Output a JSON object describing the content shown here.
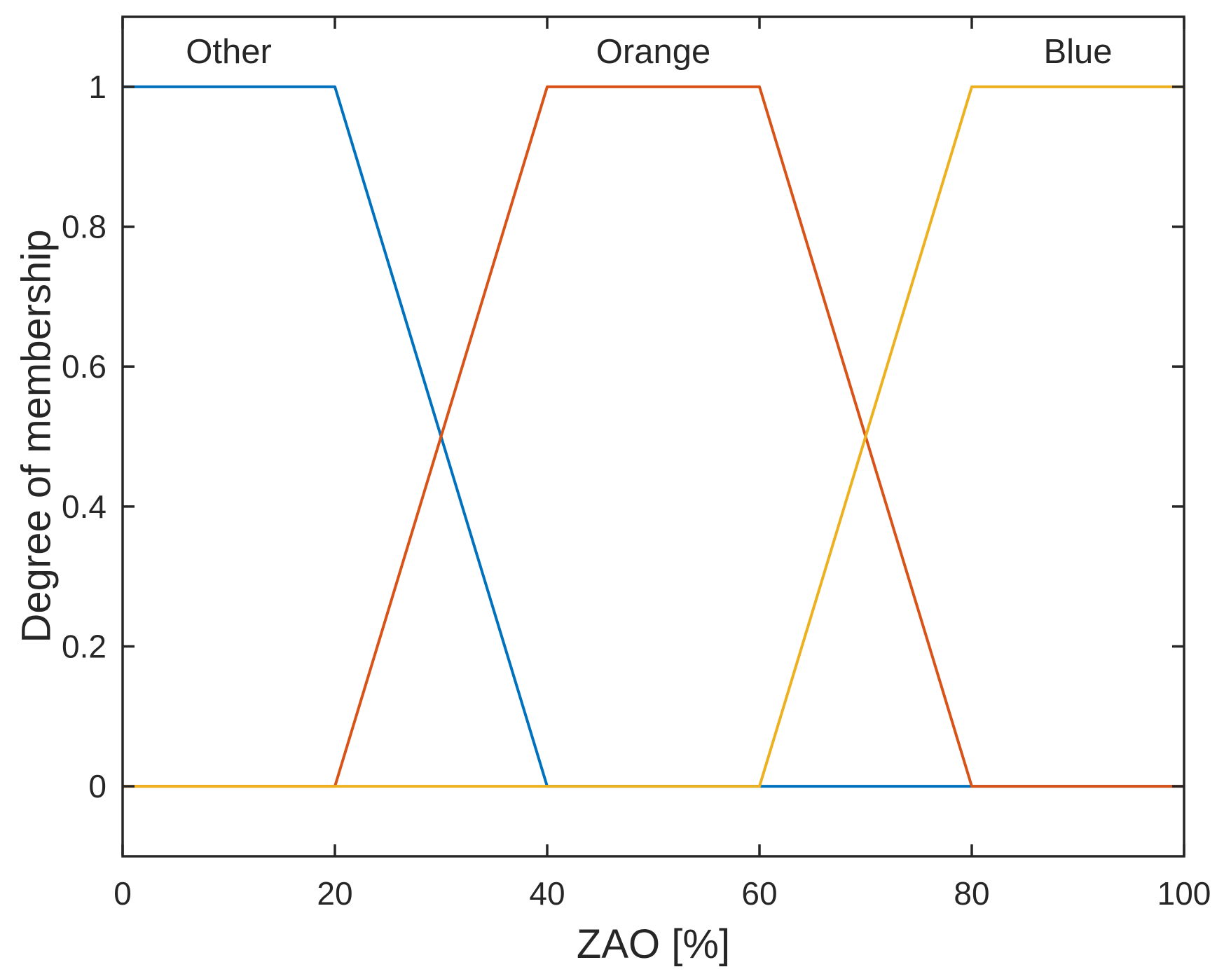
{
  "figure": {
    "background": "#ffffff",
    "axis_color": "#262626",
    "text_color": "#262626",
    "series_line_width": 4,
    "axis_line_width": 3.5,
    "tick_length": 17
  },
  "chart_data": {
    "type": "line",
    "title": "",
    "xlabel": "ZAO [%]",
    "ylabel": "Degree of membership",
    "xlim": [
      0,
      100
    ],
    "ylim": [
      -0.1,
      1.1
    ],
    "xticks": [
      0,
      20,
      40,
      60,
      80,
      100
    ],
    "xtick_labels": [
      "0",
      "20",
      "40",
      "60",
      "80",
      "100"
    ],
    "yticks": [
      0,
      0.2,
      0.4,
      0.6,
      0.8,
      1
    ],
    "ytick_labels": [
      "0",
      "0.2",
      "0.4",
      "0.6",
      "0.8",
      "1"
    ],
    "grid": false,
    "legend": "none",
    "series": [
      {
        "name": "Other",
        "color": "#0072BD",
        "points": [
          [
            0,
            1
          ],
          [
            20,
            1
          ],
          [
            40,
            0
          ],
          [
            100,
            0
          ]
        ]
      },
      {
        "name": "Orange",
        "color": "#D95319",
        "points": [
          [
            0,
            0
          ],
          [
            20,
            0
          ],
          [
            40,
            1
          ],
          [
            60,
            1
          ],
          [
            80,
            0
          ],
          [
            100,
            0
          ]
        ]
      },
      {
        "name": "Blue",
        "color": "#EDB120",
        "points": [
          [
            0,
            0
          ],
          [
            60,
            0
          ],
          [
            80,
            1
          ],
          [
            100,
            1
          ]
        ]
      }
    ],
    "annotations": [
      {
        "text": "Other",
        "x": 10,
        "y": 1.05
      },
      {
        "text": "Orange",
        "x": 50,
        "y": 1.05
      },
      {
        "text": "Blue",
        "x": 90,
        "y": 1.05
      }
    ]
  }
}
